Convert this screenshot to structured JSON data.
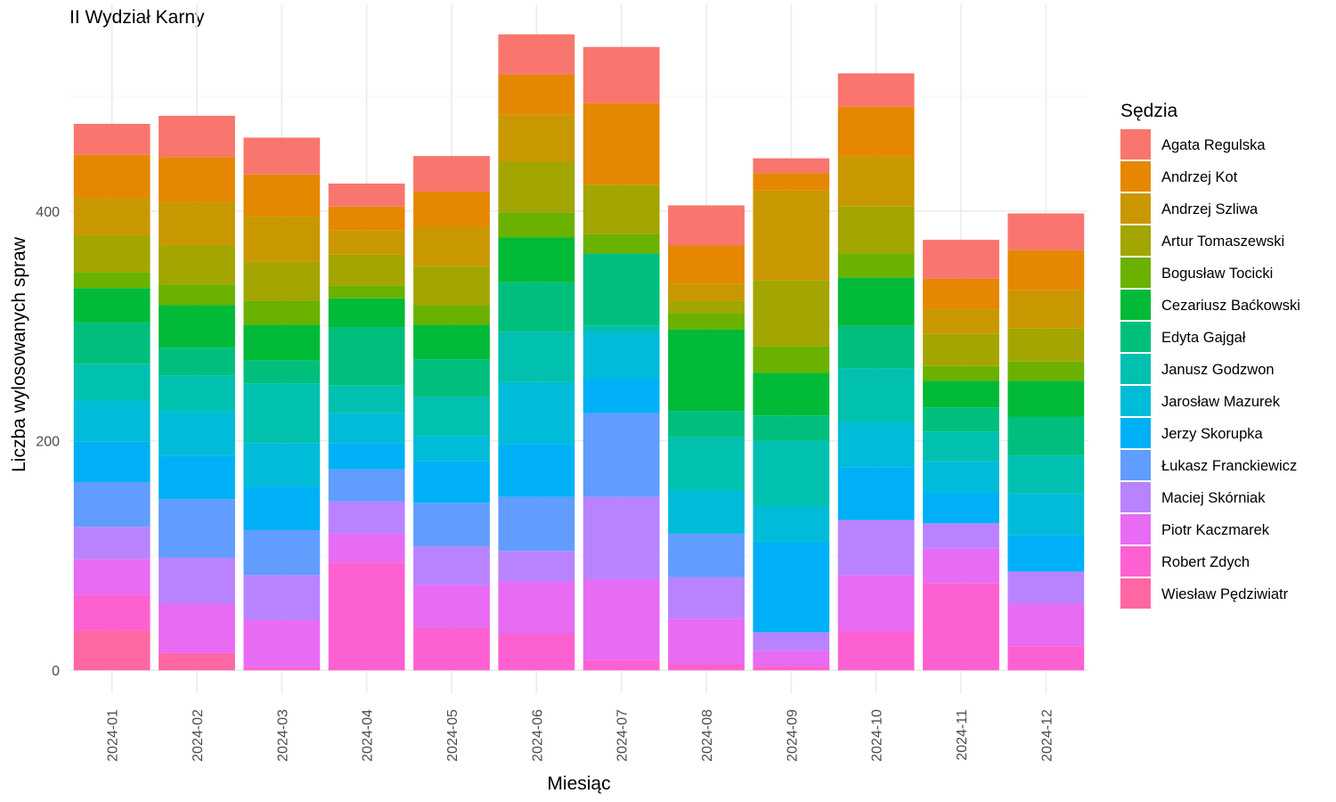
{
  "chart_data": {
    "type": "bar",
    "stacked": true,
    "title": "II Wydział Karny",
    "xlabel": "Miesiąc",
    "ylabel": "Liczba wylosowanych spraw",
    "ylim": [
      -20,
      580
    ],
    "y_ticks": [
      0,
      200,
      400
    ],
    "grid": true,
    "legend": {
      "title": "Sędzia",
      "position": "right"
    },
    "categories": [
      "2024-01",
      "2024-02",
      "2024-03",
      "2024-04",
      "2024-05",
      "2024-06",
      "2024-07",
      "2024-08",
      "2024-09",
      "2024-10",
      "2024-11",
      "2024-12"
    ],
    "series": [
      {
        "name": "Agata Regulska",
        "color": "#F8766D",
        "values": [
          27,
          36,
          32,
          20,
          31,
          35,
          49,
          35,
          13,
          29,
          34,
          32
        ]
      },
      {
        "name": "Andrzej Kot",
        "color": "#E58700",
        "values": [
          37,
          39,
          36,
          21,
          31,
          35,
          71,
          33,
          15,
          43,
          26,
          35
        ]
      },
      {
        "name": "Andrzej Szliwa",
        "color": "#C99800",
        "values": [
          33,
          38,
          40,
          21,
          34,
          41,
          0,
          15,
          78,
          44,
          22,
          33
        ]
      },
      {
        "name": "Artur Tomaszewski",
        "color": "#A3A500",
        "values": [
          32,
          34,
          34,
          27,
          34,
          44,
          43,
          11,
          58,
          41,
          28,
          29
        ]
      },
      {
        "name": "Bogusław Tocicki",
        "color": "#6BB100",
        "values": [
          14,
          18,
          21,
          11,
          17,
          22,
          17,
          14,
          23,
          21,
          13,
          17
        ]
      },
      {
        "name": "Cezariusz Baćkowski",
        "color": "#00BA38",
        "values": [
          30,
          37,
          31,
          25,
          30,
          39,
          0,
          71,
          37,
          42,
          23,
          31
        ]
      },
      {
        "name": "Edyta Gajgał",
        "color": "#00BF7D",
        "values": [
          36,
          24,
          20,
          51,
          33,
          43,
          63,
          23,
          22,
          37,
          21,
          34
        ]
      },
      {
        "name": "Janusz Godzwon",
        "color": "#00C0AF",
        "values": [
          32,
          31,
          52,
          24,
          34,
          44,
          6,
          46,
          57,
          47,
          26,
          33
        ]
      },
      {
        "name": "Jarosław Mazurek",
        "color": "#00BCD8",
        "values": [
          36,
          39,
          38,
          26,
          22,
          54,
          40,
          38,
          31,
          39,
          27,
          36
        ]
      },
      {
        "name": "Jerzy Skorupka",
        "color": "#00B0F6",
        "values": [
          35,
          38,
          38,
          23,
          36,
          46,
          30,
          0,
          79,
          46,
          27,
          32
        ]
      },
      {
        "name": "Łukasz Franckiewicz",
        "color": "#619CFF",
        "values": [
          39,
          51,
          39,
          28,
          38,
          47,
          73,
          38,
          0,
          0,
          0,
          0
        ]
      },
      {
        "name": "Maciej Skórniak",
        "color": "#B983FF",
        "values": [
          28,
          40,
          39,
          28,
          34,
          27,
          72,
          36,
          16,
          48,
          22,
          28
        ]
      },
      {
        "name": "Piotr Kaczmarek",
        "color": "#E76BF3",
        "values": [
          31,
          43,
          41,
          25,
          37,
          45,
          70,
          39,
          13,
          49,
          30,
          37
        ]
      },
      {
        "name": "Robert Zdych",
        "color": "#FD61D1",
        "values": [
          31,
          0,
          3,
          94,
          37,
          32,
          9,
          6,
          4,
          34,
          76,
          21
        ]
      },
      {
        "name": "Wiesław Pędziwiatr",
        "color": "#FF67A4",
        "values": [
          35,
          15,
          0,
          0,
          0,
          0,
          0,
          0,
          0,
          0,
          0,
          0
        ]
      }
    ]
  }
}
